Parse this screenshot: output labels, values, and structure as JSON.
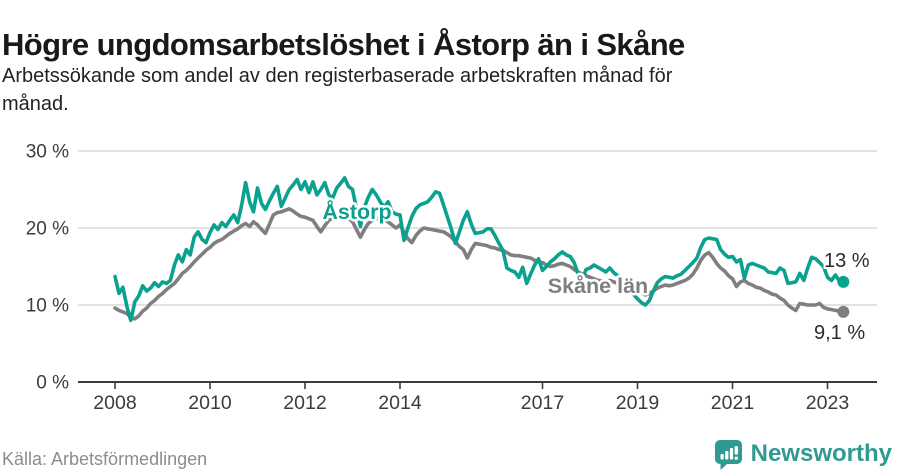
{
  "header": {
    "title": "Högre ungdomsarbetslöshet i Åstorp än i Skåne",
    "subtitle_line1": "Arbetssökande som andel av den registerbaserade arbetskraften månad för",
    "subtitle_line2": "månad."
  },
  "footer": {
    "source": "Källa: Arbetsförmedlingen",
    "brand": "Newsworthy"
  },
  "colors": {
    "astorp_line": "#0ba18f",
    "skane_line": "#7f7f7f",
    "grid": "#d9d9d9",
    "axis": "#3c3c3c",
    "tick_label": "#3c3c3c",
    "end_label": "#2b2b2b",
    "brand_teal": "#2f9a92",
    "source_gray": "#8c8c8c"
  },
  "chart_data": {
    "type": "line",
    "title": "Högre ungdomsarbetslöshet i Åstorp än i Skåne",
    "xlabel": "",
    "ylabel": "",
    "frequency": "monthly",
    "x_start": "2008-01",
    "x_end": "2023-05",
    "ylim": [
      0,
      30
    ],
    "grid": "horizontal",
    "y_ticks": [
      {
        "value": 0,
        "label": "0 %"
      },
      {
        "value": 10,
        "label": "10 %"
      },
      {
        "value": 20,
        "label": "20 %"
      },
      {
        "value": 30,
        "label": "30 %"
      }
    ],
    "x_ticks": [
      {
        "year": 2008,
        "label": "2008"
      },
      {
        "year": 2010,
        "label": "2010"
      },
      {
        "year": 2012,
        "label": "2012"
      },
      {
        "year": 2014,
        "label": "2014"
      },
      {
        "year": 2017,
        "label": "2017"
      },
      {
        "year": 2019,
        "label": "2019"
      },
      {
        "year": 2021,
        "label": "2021"
      },
      {
        "year": 2023,
        "label": "2023"
      }
    ],
    "series": [
      {
        "name": "Skåne län",
        "color": "#7f7f7f",
        "end_label": "9,1 %",
        "values": [
          9.6,
          9.3,
          9.1,
          8.9,
          8.4,
          8.2,
          8.6,
          9.2,
          9.6,
          10.2,
          10.6,
          11.1,
          11.5,
          12.0,
          12.4,
          12.8,
          13.4,
          14.1,
          14.5,
          15.0,
          15.6,
          16.1,
          16.6,
          17.1,
          17.5,
          18.0,
          18.3,
          18.5,
          18.9,
          19.3,
          19.6,
          19.9,
          20.3,
          20.6,
          20.2,
          20.8,
          20.4,
          19.8,
          19.3,
          20.5,
          21.7,
          22.0,
          22.1,
          22.3,
          22.5,
          22.2,
          21.8,
          21.5,
          21.4,
          21.2,
          21.0,
          20.2,
          19.5,
          20.3,
          21.0,
          21.3,
          21.5,
          21.7,
          21.5,
          21.3,
          20.8,
          19.8,
          18.8,
          19.8,
          20.6,
          21.0,
          21.2,
          21.3,
          21.0,
          20.8,
          20.4,
          20.0,
          20.4,
          19.4,
          18.6,
          18.1,
          19.0,
          19.6,
          20.0,
          19.9,
          19.8,
          19.7,
          19.6,
          19.5,
          19.2,
          18.8,
          18.2,
          17.6,
          17.2,
          16.1,
          17.2,
          18.0,
          17.9,
          17.8,
          17.7,
          17.5,
          17.4,
          17.2,
          17.1,
          16.8,
          16.5,
          16.4,
          16.4,
          16.3,
          16.2,
          16.1,
          15.8,
          15.6,
          15.5,
          15.2,
          15.0,
          15.1,
          15.3,
          15.4,
          15.2,
          15.0,
          14.6,
          14.3,
          14.0,
          13.8,
          13.6,
          13.4,
          13.2,
          13.1,
          13.0,
          13.2,
          13.0,
          12.8,
          12.6,
          12.4,
          12.2,
          12.1,
          11.9,
          11.6,
          11.3,
          11.5,
          11.8,
          12.2,
          12.4,
          12.6,
          12.5,
          12.6,
          12.8,
          13.0,
          13.2,
          13.5,
          14.0,
          14.8,
          15.8,
          16.5,
          16.8,
          16.2,
          15.4,
          14.8,
          14.4,
          13.8,
          13.4,
          12.4,
          13.0,
          13.2,
          12.8,
          12.6,
          12.3,
          12.2,
          11.9,
          11.7,
          11.4,
          11.3,
          10.9,
          10.6,
          10.0,
          9.6,
          9.3,
          10.2,
          10.1,
          10.0,
          10.0,
          10.0,
          10.2,
          9.7,
          9.5,
          9.4,
          9.3,
          9.2,
          9.1
        ]
      },
      {
        "name": "Åstorp",
        "color": "#0ba18f",
        "end_label": "13 %",
        "values": [
          13.7,
          11.5,
          12.3,
          9.8,
          8.0,
          10.4,
          11.2,
          12.5,
          11.8,
          12.2,
          12.9,
          12.4,
          13.0,
          12.8,
          13.2,
          15.2,
          16.5,
          15.6,
          17.2,
          16.5,
          18.8,
          19.5,
          18.5,
          18.1,
          19.4,
          20.4,
          19.8,
          20.7,
          20.2,
          21.0,
          21.7,
          20.7,
          23.0,
          25.9,
          23.4,
          22.1,
          25.2,
          23.2,
          22.4,
          23.5,
          24.5,
          25.4,
          22.8,
          23.9,
          25.0,
          25.6,
          26.3,
          25.0,
          26.0,
          24.6,
          26.0,
          24.3,
          25.0,
          25.9,
          24.3,
          23.9,
          25.2,
          25.8,
          26.5,
          25.4,
          25.0,
          22.5,
          20.2,
          22.7,
          24.0,
          25.0,
          24.3,
          23.4,
          22.7,
          23.4,
          22.1,
          21.8,
          21.7,
          18.4,
          20.0,
          21.5,
          22.5,
          23.0,
          23.2,
          23.4,
          24.0,
          24.7,
          24.5,
          23.0,
          21.4,
          19.8,
          18.0,
          19.5,
          21.0,
          22.1,
          20.5,
          19.3,
          19.4,
          19.5,
          19.9,
          19.9,
          19.0,
          18.0,
          17.1,
          14.8,
          14.5,
          14.3,
          13.6,
          14.9,
          12.8,
          14.0,
          15.2,
          16.0,
          14.5,
          15.0,
          15.6,
          16.0,
          16.5,
          16.9,
          16.5,
          16.3,
          15.5,
          14.0,
          13.3,
          14.6,
          14.8,
          15.2,
          14.9,
          14.6,
          14.3,
          14.8,
          14.2,
          13.8,
          13.4,
          12.8,
          12.2,
          11.4,
          10.8,
          10.3,
          10.0,
          10.6,
          11.8,
          12.9,
          13.4,
          13.7,
          13.6,
          13.5,
          13.8,
          14.0,
          14.5,
          15.0,
          15.5,
          16.1,
          17.5,
          18.5,
          18.7,
          18.6,
          18.5,
          17.2,
          16.6,
          16.2,
          16.3,
          15.6,
          15.9,
          13.5,
          15.2,
          15.4,
          15.2,
          15.0,
          14.8,
          14.3,
          14.2,
          14.1,
          14.8,
          14.5,
          12.8,
          12.9,
          13.0,
          14.1,
          13.2,
          14.8,
          16.2,
          16.0,
          15.5,
          15.0,
          13.6,
          13.2,
          13.9,
          13.1,
          13.0
        ]
      }
    ]
  }
}
